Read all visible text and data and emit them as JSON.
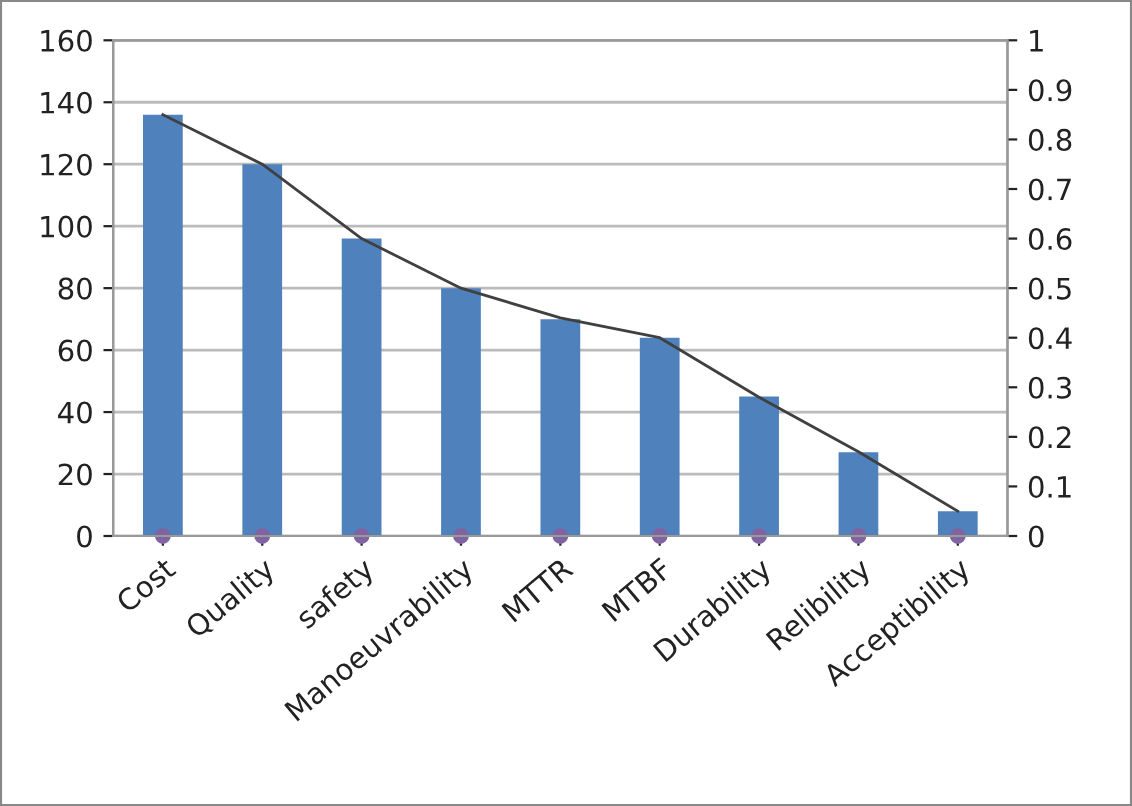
{
  "chart_data": {
    "type": "bar",
    "categories": [
      "Cost",
      "Quality",
      "safety",
      "Manoeuvrability",
      "MTTR",
      "MTBF",
      "Durability",
      "Relibility",
      "Acceptibility"
    ],
    "series": [
      {
        "color": "#4f81bd",
        "values": [
          136,
          120,
          96,
          80,
          70,
          64,
          45,
          27,
          8
        ]
      },
      {
        "type": "line",
        "axis": "y2",
        "color": "#404040",
        "values": [
          0.85,
          0.75,
          0.6,
          0.5,
          0.44,
          0.4,
          0.28,
          0.17,
          0.05
        ]
      },
      {
        "type": "scatter",
        "color": "#8064a2",
        "values": [
          0,
          0,
          0,
          0,
          0,
          0,
          0,
          0,
          0
        ]
      }
    ],
    "ylim": [
      0,
      160
    ],
    "yticks": [
      0,
      20,
      40,
      60,
      80,
      100,
      120,
      140,
      160
    ],
    "y2lim": [
      0,
      1
    ],
    "y2ticks": [
      0,
      0.1,
      0.2,
      0.3,
      0.4,
      0.5,
      0.6,
      0.7,
      0.8,
      0.9,
      1
    ],
    "grid": "y"
  }
}
